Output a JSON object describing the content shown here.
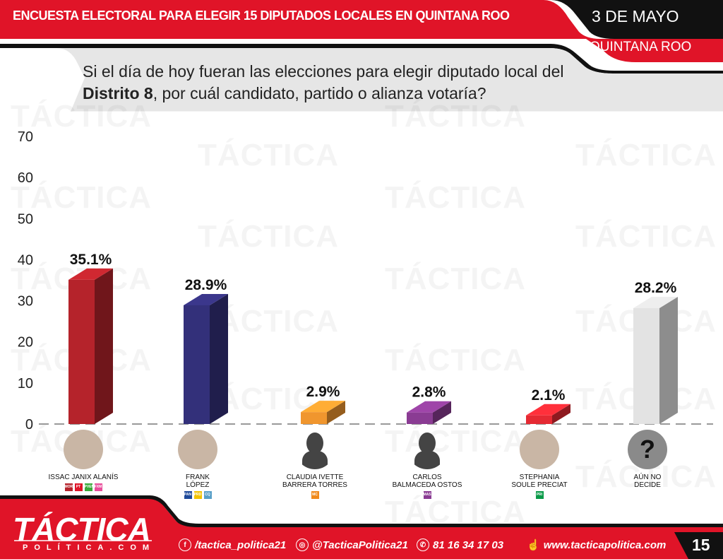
{
  "header": {
    "title": "ENCUESTA ELECTORAL PARA ELEGIR 15 DIPUTADOS LOCALES EN QUINTANA ROO",
    "date": "3 DE MAYO",
    "region": "QUINTANA ROO"
  },
  "question": {
    "part1": "Si el día de hoy fueran las elecciones para elegir diputado local del ",
    "bold": "Distrito 8",
    "part2": ", por cuál candidato, partido o alianza votaría?"
  },
  "watermark": "TÁCTICA",
  "chart_data": {
    "type": "bar",
    "title": "",
    "xlabel": "",
    "ylabel": "",
    "ylim": [
      0,
      70
    ],
    "yticks": [
      "0",
      "10",
      "20",
      "30",
      "40",
      "50",
      "60",
      "70"
    ],
    "categories": [
      "ISSAC JANIX ALANÍS",
      "FRANK LÓPEZ",
      "CLAUDIA IVETTE BARRERA TORRES",
      "CARLOS BALMACEDA OSTOS",
      "STEPHANIA SOULE PRECIAT",
      "AÚN NO DECIDE"
    ],
    "values": [
      35.1,
      28.9,
      2.9,
      2.8,
      2.1,
      28.2
    ],
    "labels": [
      "35.1%",
      "28.9%",
      "2.9%",
      "2.8%",
      "2.1%",
      "28.2%"
    ],
    "colors": [
      "#b5232b",
      "#33307a",
      "#f0962e",
      "#8a3c93",
      "#e52a33",
      "#e3e3e3"
    ],
    "grid": false
  },
  "candidates": [
    {
      "line1": "ISSAC JANIX ALANÍS",
      "line2": "",
      "parties": [
        "MORENA",
        "PT",
        "PVEM",
        "FXM"
      ]
    },
    {
      "line1": "FRANK",
      "line2": "LÓPEZ",
      "parties": [
        "PAN",
        "PRD",
        "CQ"
      ]
    },
    {
      "line1": "CLAUDIA IVETTE",
      "line2": "BARRERA TORRES",
      "parties": [
        "MC"
      ]
    },
    {
      "line1": "CARLOS",
      "line2": "BALMACEDA OSTOS",
      "parties": [
        "MAS"
      ]
    },
    {
      "line1": "STEPHANIA",
      "line2": "SOULE PRECIAT",
      "parties": [
        "PRI"
      ]
    },
    {
      "line1": "AÚN NO",
      "line2": "DECIDE",
      "parties": []
    }
  ],
  "footer": {
    "brand": "TÁCTICA",
    "brand_sub": "POLÍTICA.COM",
    "facebook": "/tactica_politica21",
    "instagram": "@TacticaPolitica21",
    "phone": "81 16 34 17 03",
    "website": "www.tacticapolitica.com",
    "page": "15"
  }
}
